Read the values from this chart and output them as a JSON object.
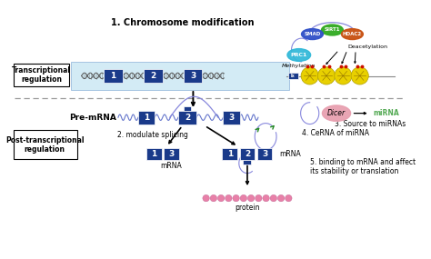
{
  "title": "1. Chromosome modification",
  "bg_color": "#ffffff",
  "dark_blue": "#1a3a8a",
  "light_blue_bg": "#cce8f4",
  "dna_color": "#666666",
  "transcriptional_label": "Transcriptional\nregulation",
  "post_transcriptional_label": "Post-transcriptional\nregulation",
  "pre_mrna_label": "Pre-mRNA",
  "modulate_label": "2. modulate splicing",
  "cerna_label": "4. CeRNA of miRNA",
  "source_mirna_label": "3. Source to miRNAs",
  "binding_label": "5. binding to mRNA and affect\nits stability or translation",
  "mrna_label": "mRNA",
  "protein_label": "protein",
  "deacetylation_label": "Deacetylation",
  "methylation_label": "Methylation",
  "dicer_color": "#e8a0b0",
  "mirna_color": "#55aa55",
  "histone_color": "#e8d000",
  "pbx_color": "#30b8d8",
  "sirt_color": "#30aa20",
  "smad_color": "#3050c8",
  "hdac_color": "#c85010",
  "lncrna_color": "#6677cc",
  "lncrna_color2": "#8888dd"
}
